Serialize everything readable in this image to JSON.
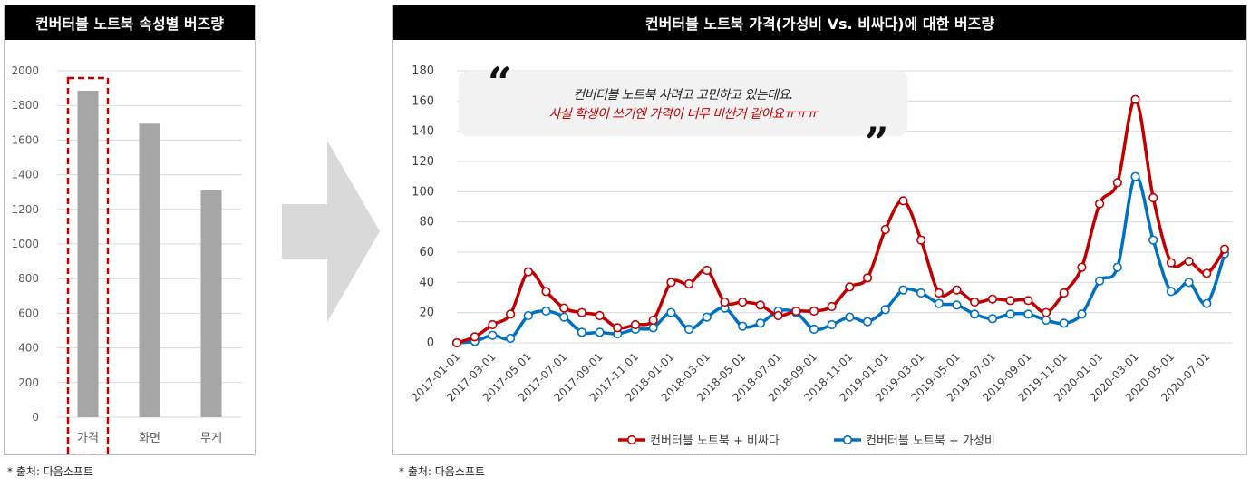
{
  "left_panel": {
    "title": "컨버터블 노트북 속성별 버즈량",
    "source": "* 출처: 다음소프트"
  },
  "right_panel": {
    "title": "컨버터블 노트북 가격(가성비 Vs. 비싸다)에 대한 버즈량",
    "source": "* 출처: 다음소프트",
    "quote": {
      "open_mark": "“",
      "close_mark": "”",
      "line1": "컨버터블 노트북 사려고 고민하고 있는데요.",
      "line2": "사실 학생이 쓰기엔 가격이 너무 비싼거 같아요ㅠㅠㅠ"
    }
  },
  "colors": {
    "bar": "#a6a6a6",
    "highlight": "#c00000",
    "expensive": "#c00000",
    "value": "#0070c0",
    "grid": "#d9d9d9",
    "arrow": "#d9d9d9"
  },
  "chart_data": [
    {
      "type": "bar",
      "title": "컨버터블 노트북 속성별 버즈량",
      "categories": [
        "가격",
        "화면",
        "무게"
      ],
      "values": [
        1885,
        1695,
        1310
      ],
      "ylim": [
        0,
        2000
      ],
      "yticks": [
        0,
        200,
        400,
        600,
        800,
        1000,
        1200,
        1400,
        1600,
        1800,
        2000
      ],
      "highlight_category": "가격",
      "grid": true
    },
    {
      "type": "line",
      "title": "컨버터블 노트북 가격(가성비 Vs. 비싸다)에 대한 버즈량",
      "x": [
        "2017-01-01",
        "2017-02-01",
        "2017-03-01",
        "2017-04-01",
        "2017-05-01",
        "2017-06-01",
        "2017-07-01",
        "2017-08-01",
        "2017-09-01",
        "2017-10-01",
        "2017-11-01",
        "2017-12-01",
        "2018-01-01",
        "2018-02-01",
        "2018-03-01",
        "2018-04-01",
        "2018-05-01",
        "2018-06-01",
        "2018-07-01",
        "2018-08-01",
        "2018-09-01",
        "2018-10-01",
        "2018-11-01",
        "2018-12-01",
        "2019-01-01",
        "2019-02-01",
        "2019-03-01",
        "2019-04-01",
        "2019-05-01",
        "2019-06-01",
        "2019-07-01",
        "2019-08-01",
        "2019-09-01",
        "2019-10-01",
        "2019-11-01",
        "2019-12-01",
        "2020-01-01",
        "2020-02-01",
        "2020-03-01",
        "2020-04-01",
        "2020-05-01",
        "2020-06-01",
        "2020-07-01",
        "2020-08-01"
      ],
      "xticks": [
        "2017-01-01",
        "2017-03-01",
        "2017-05-01",
        "2017-07-01",
        "2017-09-01",
        "2017-11-01",
        "2018-01-01",
        "2018-03-01",
        "2018-05-01",
        "2018-07-01",
        "2018-09-01",
        "2018-11-01",
        "2019-01-01",
        "2019-03-01",
        "2019-05-01",
        "2019-07-01",
        "2019-09-01",
        "2019-11-01",
        "2020-01-01",
        "2020-03-01",
        "2020-05-01",
        "2020-07-01"
      ],
      "ylim": [
        0,
        180
      ],
      "yticks": [
        0,
        20,
        40,
        60,
        80,
        100,
        120,
        140,
        160,
        180
      ],
      "grid": true,
      "legend_position": "bottom",
      "series": [
        {
          "name": "컨버터블 노트북 + 비싸다",
          "color": "#c00000",
          "values": [
            0,
            4,
            12,
            19,
            47,
            34,
            23,
            20,
            18,
            10,
            12,
            15,
            40,
            39,
            48,
            27,
            27,
            25,
            18,
            21,
            21,
            24,
            37,
            43,
            75,
            94,
            68,
            33,
            35,
            27,
            29,
            28,
            28,
            20,
            33,
            50,
            92,
            106,
            161,
            96,
            53,
            54,
            46,
            62
          ]
        },
        {
          "name": "컨버터블 노트북 + 가성비",
          "color": "#0070c0",
          "values": [
            0,
            1,
            5,
            3,
            18,
            21,
            17,
            7,
            7,
            6,
            9,
            10,
            20,
            9,
            17,
            23,
            11,
            13,
            21,
            20,
            9,
            12,
            17,
            14,
            22,
            35,
            33,
            26,
            25,
            19,
            16,
            19,
            19,
            15,
            13,
            19,
            41,
            50,
            110,
            68,
            34,
            40,
            26,
            59
          ]
        }
      ]
    }
  ]
}
